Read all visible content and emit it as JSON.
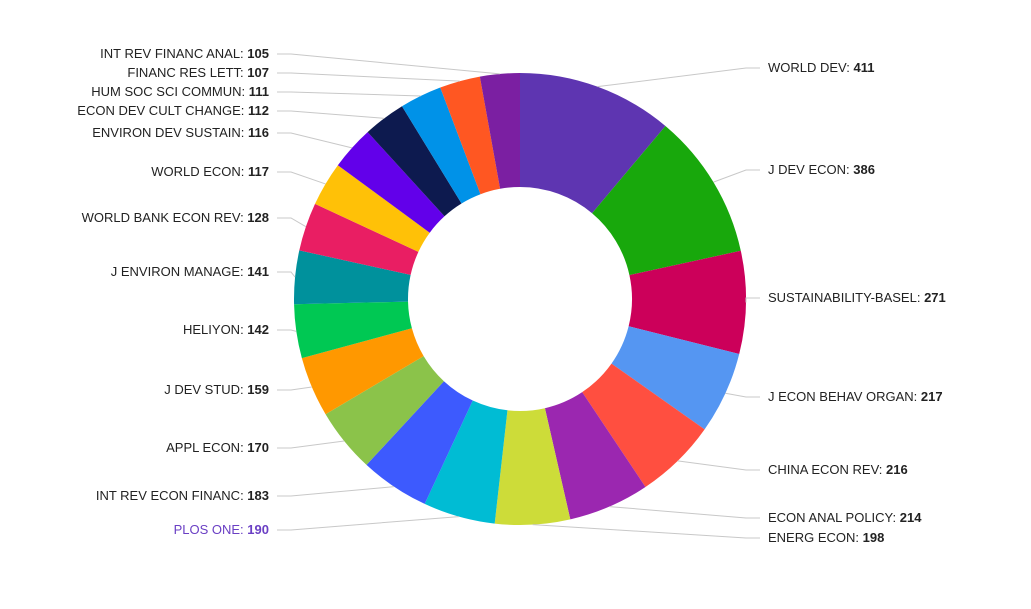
{
  "chart_data": {
    "type": "pie",
    "donut": true,
    "title": "",
    "highlighted": "PLOS ONE",
    "highlight_color": "#6a3fc4",
    "slices": [
      {
        "label": "WORLD DEV",
        "value": 411,
        "color": "#5e35b1"
      },
      {
        "label": "J DEV ECON",
        "value": 386,
        "color": "#18a80c"
      },
      {
        "label": "SUSTAINABILITY-BASEL",
        "value": 271,
        "color": "#cc005a"
      },
      {
        "label": "J ECON BEHAV ORGAN",
        "value": 217,
        "color": "#5596f2"
      },
      {
        "label": "CHINA ECON REV",
        "value": 216,
        "color": "#ff4f40"
      },
      {
        "label": "ECON ANAL POLICY",
        "value": 214,
        "color": "#9b27b0"
      },
      {
        "label": "ENERG ECON",
        "value": 198,
        "color": "#cddc39"
      },
      {
        "label": "PLOS ONE",
        "value": 190,
        "color": "#00bcd4"
      },
      {
        "label": "INT REV ECON FINANC",
        "value": 183,
        "color": "#3d5afe"
      },
      {
        "label": "APPL ECON",
        "value": 170,
        "color": "#8bc34a"
      },
      {
        "label": "J DEV STUD",
        "value": 159,
        "color": "#ff9800"
      },
      {
        "label": "HELIYON",
        "value": 142,
        "color": "#00c853"
      },
      {
        "label": "J ENVIRON MANAGE",
        "value": 141,
        "color": "#00919c"
      },
      {
        "label": "WORLD BANK ECON REV",
        "value": 128,
        "color": "#e91e63"
      },
      {
        "label": "WORLD ECON",
        "value": 117,
        "color": "#ffc107"
      },
      {
        "label": "ENVIRON DEV SUSTAIN",
        "value": 116,
        "color": "#6200ea"
      },
      {
        "label": "ECON DEV CULT CHANGE",
        "value": 112,
        "color": "#0d1a4f"
      },
      {
        "label": "HUM SOC SCI COMMUN",
        "value": 111,
        "color": "#0092e8"
      },
      {
        "label": "FINANC RES LETT",
        "value": 107,
        "color": "#ff5722"
      },
      {
        "label": "INT REV FINANC ANAL",
        "value": 105,
        "color": "#7b1fa2"
      }
    ]
  }
}
